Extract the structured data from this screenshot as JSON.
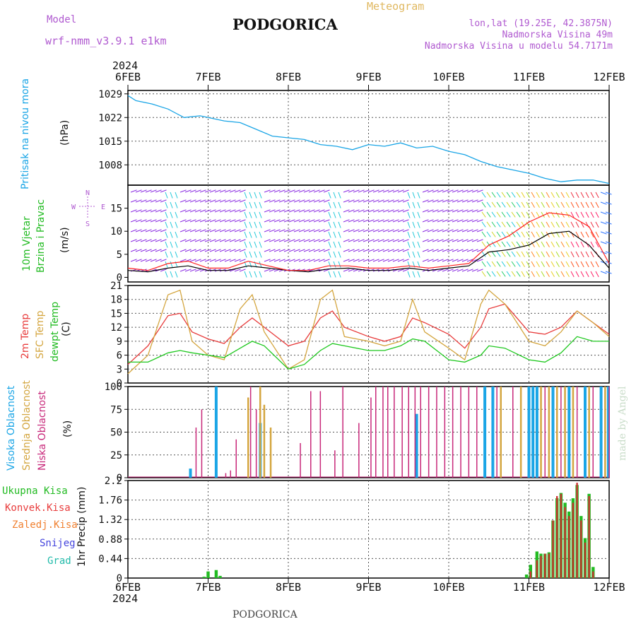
{
  "header": {
    "model_label": "Model",
    "model_name": "wrf-nmm_v3.9.1  e1km",
    "station": "PODGORICA",
    "product": "Meteogram",
    "lonlat": "lon,lat (19.25E, 42.3875N)",
    "elevation": "Nadmorska Visina 49m",
    "model_elevation": "Nadmorska Visina u modelu 54.7171m",
    "watermark": "made by Angel",
    "footer_station": "PODGORICA"
  },
  "colors": {
    "pressure": "#1aa5e6",
    "wind_speed": "#000000",
    "wind_gust": "#ff2222",
    "t2m": "#e83c3c",
    "tsfc": "#d4a640",
    "dewpt": "#1ec81e",
    "cloud_high": "#1aa5e6",
    "cloud_mid": "#d4a640",
    "cloud_low": "#c8287a",
    "precip_total": "#22bb22",
    "precip_conv": "#cc3333"
  },
  "chart_data": [
    {
      "type": "line",
      "panel": "pressure",
      "ylabel": "Pritisak na nivou mora",
      "unit": "(hPa)",
      "x_axis": {
        "year": "2024",
        "ticks": [
          "6FEB",
          "7FEB",
          "8FEB",
          "9FEB",
          "10FEB",
          "11FEB",
          "12FEB"
        ]
      },
      "ylim": [
        1002,
        1030
      ],
      "yticks": [
        1008,
        1015,
        1022,
        1029
      ],
      "x": [
        0,
        0.1,
        0.3,
        0.5,
        0.7,
        0.9,
        1.0,
        1.2,
        1.4,
        1.6,
        1.8,
        2.0,
        2.2,
        2.4,
        2.6,
        2.8,
        3.0,
        3.2,
        3.4,
        3.6,
        3.8,
        4.0,
        4.2,
        4.4,
        4.6,
        4.8,
        5.0,
        5.2,
        5.4,
        5.6,
        5.8,
        6.0
      ],
      "series": [
        {
          "values": [
            1028.5,
            1027,
            1026,
            1024.5,
            1022,
            1022.5,
            1022,
            1021,
            1020.5,
            1018.5,
            1016.5,
            1016,
            1015.5,
            1014,
            1013.5,
            1012.5,
            1014,
            1013.5,
            1014.5,
            1013,
            1013.5,
            1012,
            1011,
            1009,
            1007.5,
            1006.5,
            1005.5,
            1004,
            1003,
            1003.5,
            1003.5,
            1002.5
          ]
        }
      ]
    },
    {
      "type": "line",
      "panel": "wind",
      "ylabel": [
        "10m Vjetar",
        "Brzina i Pravac"
      ],
      "unit": "(m/s)",
      "compass": {
        "n": "N",
        "w": "W",
        "e": "E",
        "s": "S"
      },
      "ylim": [
        -1,
        20
      ],
      "yticks": [
        0,
        5,
        10,
        15
      ],
      "x": [
        0,
        0.25,
        0.5,
        0.75,
        1.0,
        1.25,
        1.5,
        1.75,
        2.0,
        2.25,
        2.5,
        2.75,
        3.0,
        3.25,
        3.5,
        3.75,
        4.0,
        4.25,
        4.5,
        4.75,
        5.0,
        5.25,
        5.5,
        5.75,
        6.0
      ],
      "series": [
        {
          "values": [
            1.5,
            1.2,
            2.0,
            2.5,
            1.5,
            1.5,
            2.5,
            2.0,
            1.5,
            1.2,
            1.8,
            2.0,
            1.5,
            1.5,
            2.0,
            1.5,
            2.0,
            2.5,
            5.5,
            6.0,
            7.0,
            9.5,
            10.0,
            7.0,
            2.0
          ]
        },
        {
          "values": [
            2.0,
            1.5,
            3.0,
            3.5,
            2.0,
            2.0,
            3.5,
            2.5,
            1.5,
            1.5,
            2.5,
            2.5,
            2.0,
            2.0,
            2.5,
            2.0,
            2.5,
            3.0,
            7.0,
            9.0,
            12.0,
            14.0,
            13.5,
            11.0,
            3.0
          ]
        }
      ]
    },
    {
      "type": "line",
      "panel": "temperature",
      "ylabel": [
        "2m Temp",
        "SFC Temp",
        "dewpt Temp"
      ],
      "unit": "(C)",
      "ylim": [
        0,
        21
      ],
      "yticks": [
        0,
        3,
        6,
        9,
        12,
        15,
        18,
        21
      ],
      "x": [
        0,
        0.25,
        0.5,
        0.65,
        0.8,
        1.0,
        1.2,
        1.4,
        1.55,
        1.7,
        2.0,
        2.2,
        2.4,
        2.55,
        2.7,
        3.0,
        3.2,
        3.4,
        3.55,
        3.7,
        4.0,
        4.2,
        4.4,
        4.5,
        4.7,
        5.0,
        5.2,
        5.4,
        5.6,
        5.8,
        6.0
      ],
      "series": [
        {
          "name": "2m Temp",
          "values": [
            4,
            8,
            14.5,
            15,
            11,
            9.5,
            8.5,
            12,
            14,
            12,
            8,
            9,
            14,
            15.5,
            12,
            10,
            9,
            10,
            14,
            13,
            10.5,
            7.5,
            12,
            16,
            17,
            11,
            10.5,
            12,
            15.5,
            13,
            10.5
          ]
        },
        {
          "name": "SFC Temp",
          "values": [
            2,
            6,
            19,
            20,
            9,
            6,
            5,
            16,
            19,
            11,
            3,
            5,
            18,
            20,
            10,
            9,
            8,
            9,
            18,
            11,
            7.5,
            5,
            17,
            20,
            17,
            9,
            8,
            11,
            15.5,
            13,
            10
          ]
        },
        {
          "name": "dewpt Temp",
          "values": [
            4.5,
            4.5,
            6.5,
            7,
            6.5,
            6,
            5.5,
            7.5,
            9,
            8,
            3,
            4,
            7,
            8.5,
            8,
            7,
            7,
            8,
            9.5,
            9,
            5,
            4.5,
            6,
            8,
            7.5,
            5,
            4.5,
            6.5,
            10,
            9,
            9
          ]
        }
      ]
    },
    {
      "type": "bar",
      "panel": "cloud",
      "ylabel": [
        "Visoka Oblacnost",
        "Srednja Oblacnost",
        "Niska Oblacnost"
      ],
      "unit": "(%)",
      "ylim": [
        0,
        100
      ],
      "yticks": [
        0,
        25,
        50,
        75,
        100
      ],
      "series": [
        {
          "name": "Visoka Oblacnost",
          "x": [
            0.78,
            1.1,
            1.65,
            3.6,
            4.45,
            4.55,
            5.0,
            5.05,
            5.1,
            5.3,
            5.5,
            5.7,
            5.9,
            5.99
          ],
          "values": [
            10,
            100,
            60,
            70,
            100,
            100,
            100,
            100,
            100,
            100,
            100,
            100,
            100,
            100
          ]
        },
        {
          "name": "Srednja Oblacnost",
          "x": [
            1.5,
            1.65,
            1.7,
            1.78,
            4.65,
            4.9,
            5.15,
            5.25,
            5.35,
            5.45,
            5.55,
            5.75,
            5.95
          ],
          "values": [
            88,
            100,
            80,
            55,
            100,
            100,
            100,
            100,
            100,
            100,
            100,
            100,
            100
          ]
        },
        {
          "name": "Niska Oblacnost",
          "x": [
            0.85,
            0.92,
            1.22,
            1.28,
            1.35,
            1.53,
            1.6,
            2.15,
            2.28,
            2.4,
            2.58,
            2.68,
            2.88,
            3.03,
            3.09,
            3.18,
            3.24,
            3.32,
            3.42,
            3.5,
            3.58,
            3.65,
            3.75,
            3.85,
            3.95,
            4.05,
            4.15,
            4.25,
            4.35,
            4.6,
            4.8,
            5.2,
            5.4,
            5.6,
            5.8,
            6.0
          ],
          "values": [
            55,
            75,
            5,
            8,
            42,
            100,
            75,
            38,
            95,
            95,
            30,
            100,
            60,
            88,
            100,
            100,
            100,
            100,
            100,
            100,
            100,
            100,
            100,
            100,
            100,
            100,
            100,
            100,
            100,
            100,
            100,
            100,
            100,
            100,
            100,
            100
          ]
        }
      ]
    },
    {
      "type": "bar",
      "panel": "precip",
      "ylabel": "1hr Precip (mm)",
      "legend": [
        "Ukupna Kisa",
        "Konvek.Kisa",
        "Zaledj.Kisa",
        "Snijeg",
        "Grad"
      ],
      "ylim": [
        0,
        2.2
      ],
      "yticks": [
        0,
        0.44,
        0.88,
        1.32,
        1.76,
        2.2
      ],
      "x_axis": {
        "year": "2024",
        "ticks": [
          "6FEB",
          "7FEB",
          "8FEB",
          "9FEB",
          "10FEB",
          "11FEB",
          "12FEB"
        ]
      },
      "x": [
        0.95,
        1.0,
        1.1,
        1.15,
        4.97,
        5.02,
        5.1,
        5.15,
        5.2,
        5.25,
        5.3,
        5.35,
        5.4,
        5.45,
        5.5,
        5.55,
        5.6,
        5.65,
        5.7,
        5.75,
        5.8
      ],
      "series": [
        {
          "name": "Ukupna Kisa",
          "values": [
            0.03,
            0.15,
            0.18,
            0.05,
            0.08,
            0.3,
            0.6,
            0.55,
            0.55,
            0.58,
            1.3,
            1.8,
            1.92,
            1.7,
            1.5,
            1.8,
            2.1,
            1.4,
            0.9,
            1.9,
            0.25
          ]
        },
        {
          "name": "Konvek.Kisa",
          "values": [
            0,
            0,
            0,
            0,
            0,
            0.15,
            0.4,
            0.5,
            0.55,
            0.55,
            1.3,
            1.85,
            1.9,
            1.6,
            1.4,
            1.7,
            2.15,
            1.3,
            0.8,
            1.85,
            0.15
          ]
        }
      ]
    }
  ]
}
